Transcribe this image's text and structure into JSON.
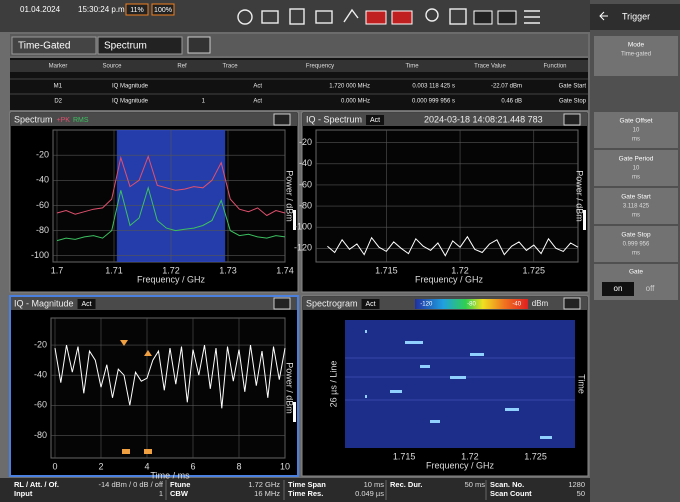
{
  "toolbar": {
    "date": "01.04.2024",
    "time": "15:30:24 p.m.",
    "battery": [
      "11%",
      "100%"
    ]
  },
  "side_panel": {
    "title": "Trigger",
    "items": [
      {
        "label": "Mode",
        "value": "Time-gated"
      },
      {
        "label": "Gate Offset",
        "value": "10",
        "unit": "ms"
      },
      {
        "label": "Gate Period",
        "value": "10",
        "unit": "ms"
      },
      {
        "label": "Gate Start",
        "value": "3.118 425",
        "unit": "ms"
      },
      {
        "label": "Gate Stop",
        "value": "0.999 956",
        "unit": "ms"
      }
    ],
    "gate": {
      "label": "Gate",
      "on": "on",
      "off": "off"
    }
  },
  "tabs": [
    "Time-Gated",
    "Spectrum"
  ],
  "marker_table": {
    "columns": [
      "Marker",
      "Source",
      "Ref",
      "Trace",
      "Frequency",
      "Time",
      "Trace Value",
      "Function"
    ],
    "rows": [
      [
        "M1",
        "IQ Magnitude",
        null,
        "Act",
        "1.720 000 MHz",
        "0.003 118 425 s",
        "-22.07 dBm",
        "Gate Start"
      ],
      [
        "D2",
        "IQ Magnitude",
        "1",
        "Act",
        "0.000 MHz",
        "0.000 999 956 s",
        "0.46 dB",
        "Gate Stop"
      ]
    ]
  },
  "panes": [
    {
      "type": "line",
      "title": "Spectrum",
      "xlabel": "Frequency / GHz",
      "ylabel": "Power / dBm",
      "xlim": [
        1.7,
        1.74
      ],
      "ylim": [
        -105,
        0
      ],
      "xticks": [
        1.7,
        1.71,
        1.72,
        1.73,
        1.74
      ],
      "yticks": [
        -20,
        -40,
        -60,
        -80,
        -100
      ],
      "gate_band": [
        1.7105,
        1.7295
      ],
      "series": [
        {
          "name": "+PK",
          "color": "#e0506e",
          "x": [
            1.7,
            1.7016,
            1.7032,
            1.7048,
            1.7064,
            1.708,
            1.7096,
            1.7112,
            1.7128,
            1.7144,
            1.716,
            1.7176,
            1.7192,
            1.7208,
            1.7224,
            1.724,
            1.7256,
            1.7272,
            1.7288,
            1.7304,
            1.732,
            1.7336,
            1.7352,
            1.7368,
            1.7384,
            1.74
          ],
          "values": [
            -66,
            -64,
            -67,
            -65,
            -63,
            -62,
            -55,
            -22,
            -45,
            -40,
            -21,
            -44,
            -46,
            -48,
            -47,
            -45,
            -46,
            -40,
            -26,
            -55,
            -63,
            -65,
            -62,
            -68,
            -64,
            -66
          ]
        },
        {
          "name": "RMS",
          "color": "#3cc060",
          "x": [
            1.7,
            1.7016,
            1.7032,
            1.7048,
            1.7064,
            1.708,
            1.7096,
            1.7112,
            1.7128,
            1.7144,
            1.716,
            1.7176,
            1.7192,
            1.7208,
            1.7224,
            1.724,
            1.7256,
            1.7272,
            1.7288,
            1.7304,
            1.732,
            1.7336,
            1.7352,
            1.7368,
            1.7384,
            1.74
          ],
          "values": [
            -88,
            -86,
            -87,
            -85,
            -84,
            -86,
            -80,
            -48,
            -76,
            -70,
            -46,
            -72,
            -78,
            -80,
            -79,
            -78,
            -76,
            -72,
            -56,
            -80,
            -84,
            -83,
            -85,
            -86,
            -84,
            -85
          ]
        }
      ]
    },
    {
      "type": "line",
      "title": "IQ - Spectrum",
      "badge": "Act",
      "timestamp": "2024-03-18 14:08:21.448 783",
      "xlabel": "Frequency / GHz",
      "ylabel": "Power / dBm",
      "xlim": [
        1.7105,
        1.728
      ],
      "ylim": [
        -133,
        -8
      ],
      "xticks": [
        1.715,
        1.72,
        1.725
      ],
      "yticks": [
        -20,
        -40,
        -60,
        -80,
        -100,
        -120
      ],
      "series": [
        {
          "color": "#ffffff",
          "x": [
            1.711,
            1.7115,
            1.712,
            1.7125,
            1.713,
            1.7135,
            1.714,
            1.7145,
            1.715,
            1.7155,
            1.716,
            1.7165,
            1.717,
            1.7175,
            1.718,
            1.7185,
            1.719,
            1.7195,
            1.72,
            1.7205,
            1.721,
            1.7215,
            1.722,
            1.7225,
            1.723,
            1.7235,
            1.724,
            1.7245,
            1.725,
            1.7255,
            1.726,
            1.7265,
            1.727,
            1.7275,
            1.728
          ],
          "values": [
            -118,
            -124,
            -112,
            -121,
            -116,
            -126,
            -110,
            -119,
            -123,
            -114,
            -120,
            -125,
            -111,
            -118,
            -122,
            -115,
            -127,
            -113,
            -119,
            -109,
            -121,
            -124,
            -116,
            -112,
            -126,
            -118,
            -114,
            -122,
            -117,
            -125,
            -111,
            -120,
            -123,
            -115,
            -119
          ]
        }
      ]
    },
    {
      "type": "line",
      "title": "IQ - Magnitude",
      "badge": "Act",
      "xlabel": "Time / ms",
      "ylabel": "Power / dBm",
      "xlim": [
        0,
        10
      ],
      "ylim": [
        -95,
        -2
      ],
      "xticks": [
        0,
        2,
        4,
        6,
        8,
        10
      ],
      "yticks": [
        -20,
        -40,
        -60,
        -80
      ],
      "series": [
        {
          "color": "#ffffff",
          "x": [
            0,
            0.25,
            0.5,
            0.75,
            1,
            1.25,
            1.5,
            1.75,
            2,
            2.25,
            2.5,
            2.75,
            3,
            3.25,
            3.5,
            3.75,
            4,
            4.25,
            4.5,
            4.75,
            5,
            5.25,
            5.5,
            5.75,
            6,
            6.25,
            6.5,
            6.75,
            7,
            7.25,
            7.5,
            7.75,
            8,
            8.25,
            8.5,
            8.75,
            9,
            9.25,
            9.5,
            9.75,
            10
          ],
          "values": [
            -22,
            -45,
            -20,
            -38,
            -21,
            -52,
            -24,
            -30,
            -48,
            -33,
            -55,
            -36,
            -40,
            -60,
            -38,
            -44,
            -42,
            -30,
            -24,
            -50,
            -22,
            -46,
            -21,
            -58,
            -23,
            -40,
            -20,
            -49,
            -22,
            -62,
            -21,
            -44,
            -23,
            -51,
            -20,
            -47,
            -24,
            -55,
            -21,
            -43,
            -22
          ]
        }
      ]
    },
    {
      "type": "spectrogram",
      "title": "Spectrogram",
      "badge": "Act",
      "xlabel": "Frequency / GHz",
      "ylabel": "26 µs / Line",
      "y2label": "Time",
      "xlim": [
        1.7105,
        1.728
      ],
      "xticks": [
        1.715,
        1.72,
        1.725
      ],
      "clim": [
        -130,
        -30
      ],
      "cticks": [
        -120,
        -80,
        -40
      ],
      "cunit": "dBm"
    }
  ],
  "status_bar": [
    {
      "labels": [
        "RL / Att. / Of.",
        "Input"
      ],
      "values": [
        "-14 dBm / 0 dB / off",
        "1"
      ]
    },
    {
      "labels": [
        "Ftune",
        "CBW"
      ],
      "values": [
        "1.72 GHz",
        "16 MHz"
      ]
    },
    {
      "labels": [
        "Time Span",
        "Time Res."
      ],
      "values": [
        "10 ms",
        "0.049 µs"
      ]
    },
    {
      "labels": [
        "Rec. Dur."
      ],
      "values": [
        "50 ms"
      ]
    },
    {
      "labels": [
        "Scan. No.",
        "Scan Count"
      ],
      "values": [
        "1280",
        "50"
      ]
    }
  ]
}
